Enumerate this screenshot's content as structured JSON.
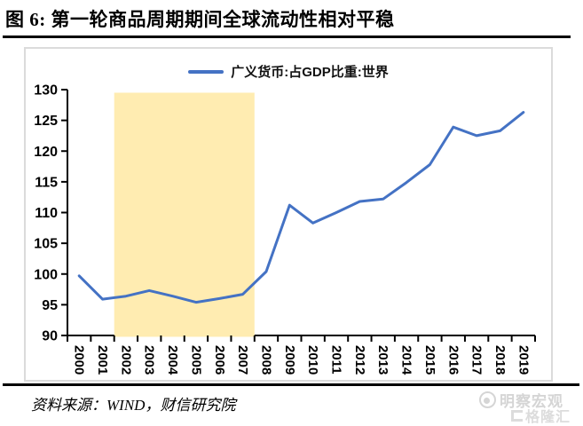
{
  "title": "图 6: 第一轮商品周期期间全球流动性相对平稳",
  "source_note": "资料来源：WIND，财信研究院",
  "watermark": {
    "brand": "明察宏观",
    "site": "格隆汇"
  },
  "colors": {
    "line": "#4472C4",
    "band": "#FFECB1",
    "panel_border": "#DBDBDB",
    "axis": "#000000",
    "watermark": "#D5D5D5"
  },
  "chart_data": {
    "type": "line",
    "title": "图 6: 第一轮商品周期期间全球流动性相对平稳",
    "categories": [
      2000,
      2001,
      2002,
      2003,
      2004,
      2005,
      2006,
      2007,
      2008,
      2009,
      2010,
      2011,
      2012,
      2013,
      2014,
      2015,
      2016,
      2017,
      2018,
      2019
    ],
    "series": [
      {
        "name": "广义货币:占GDP比重:世界",
        "color": "#4472C4",
        "values": [
          99.7,
          95.9,
          96.4,
          97.3,
          96.4,
          95.4,
          96.0,
          96.7,
          100.4,
          111.2,
          108.3,
          110.0,
          111.8,
          112.2,
          114.9,
          117.8,
          123.9,
          122.5,
          123.3,
          126.3
        ]
      }
    ],
    "xlabel": "",
    "ylabel": "",
    "ylim": [
      90,
      130
    ],
    "ytick_step": 5,
    "grid": false,
    "legend_position": "top",
    "highlight_band": {
      "from": 2002,
      "to": 2007,
      "top_value": 129.5,
      "color": "#FFECB1"
    }
  }
}
